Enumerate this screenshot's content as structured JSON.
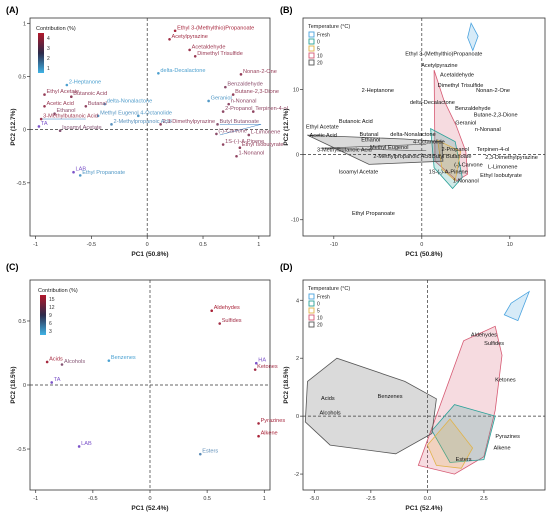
{
  "colors": {
    "fresh": "#4aa3df",
    "t0": "#2aa198",
    "t5": "#e0b34a",
    "t10": "#d65a73",
    "t20": "#555555",
    "contrib_low": "#3fb3e6",
    "contrib_high": "#b2182b",
    "purple": "#7b52c8"
  },
  "chart_data": [
    {
      "type": "scatter",
      "panel": "(A)",
      "xlabel": "PC1 (50.8%)",
      "ylabel": "PC2 (12.7%)",
      "xlim": [
        -1.05,
        1.1
      ],
      "ylim": [
        -1.0,
        1.05
      ],
      "xticks": [
        -1,
        -0.5,
        0,
        0.5,
        1
      ],
      "yticks": [
        -0.5,
        0,
        0.5,
        1
      ],
      "xtick_labels": [
        "-1",
        "-0.5",
        "0",
        "0.5",
        "1"
      ],
      "ytick_labels": [
        "-0.5",
        "0",
        "0.5",
        "1"
      ],
      "legend": {
        "title": "Contribution (%)",
        "ticks": [
          "4",
          "3",
          "2",
          "1"
        ],
        "min": 0.5,
        "max": 4.6
      },
      "points": [
        {
          "label": "Ethyl 3-(Methylthio)Propanoate",
          "x": 0.25,
          "y": 0.93,
          "c": 4.2
        },
        {
          "label": "Acetylpyrazine",
          "x": 0.2,
          "y": 0.85,
          "c": 4.0
        },
        {
          "label": "Acetaldehyde",
          "x": 0.38,
          "y": 0.75,
          "c": 3.8
        },
        {
          "label": "Dimethyl Trisulfide",
          "x": 0.43,
          "y": 0.69,
          "c": 3.7
        },
        {
          "label": "delta-Decalactone",
          "x": 0.1,
          "y": 0.53,
          "c": 1.0
        },
        {
          "label": "Nonan-2-One",
          "x": 0.84,
          "y": 0.52,
          "c": 3.6
        },
        {
          "label": "Benzaldehyde",
          "x": 0.7,
          "y": 0.4,
          "c": 3.2
        },
        {
          "label": "Butane-2,3-Dione",
          "x": 0.77,
          "y": 0.33,
          "c": 3.5
        },
        {
          "label": "Geraniol",
          "x": 0.55,
          "y": 0.27,
          "c": 1.2
        },
        {
          "label": "n-Nonanal",
          "x": 0.73,
          "y": 0.24,
          "c": 3.3
        },
        {
          "label": "2-Propanol",
          "x": 0.68,
          "y": 0.17,
          "c": 3.3
        },
        {
          "label": "Terpinen-4-ol",
          "x": 0.95,
          "y": 0.17,
          "c": 3.4
        },
        {
          "label": "2-Heptanone",
          "x": -0.72,
          "y": 0.42,
          "c": 1.0
        },
        {
          "label": "Ethyl Acetate",
          "x": -0.92,
          "y": 0.33,
          "c": 3.6
        },
        {
          "label": "Butanoic Acid",
          "x": -0.68,
          "y": 0.31,
          "c": 3.5
        },
        {
          "label": "delta-Nonalactone",
          "x": -0.38,
          "y": 0.24,
          "c": 1.1
        },
        {
          "label": "Acetic Acid",
          "x": -0.92,
          "y": 0.22,
          "c": 3.7
        },
        {
          "label": "Butanal",
          "x": -0.55,
          "y": 0.22,
          "c": 3.4
        },
        {
          "label": "Methyl Eugenol",
          "x": -0.44,
          "y": 0.13,
          "c": 1.3
        },
        {
          "label": "4-Octanolide",
          "x": -0.08,
          "y": 0.13,
          "c": 1.2
        },
        {
          "label": "Ethanol",
          "x": -0.83,
          "y": 0.15,
          "c": 3.2
        },
        {
          "label": "3-Methylbutanoic Acid",
          "x": -0.95,
          "y": 0.1,
          "c": 3.8
        },
        {
          "label": "2-Methylpropanoic Acid",
          "x": -0.32,
          "y": 0.05,
          "c": 1.4
        },
        {
          "label": "2,3-Dimethylpyrazine",
          "x": 0.12,
          "y": 0.05,
          "c": 3.4
        },
        {
          "label": "Butyl Butanoate",
          "x": 0.63,
          "y": 0.05,
          "c": 3.1
        },
        {
          "label": "TA",
          "x": -0.97,
          "y": 0.03,
          "c": 0.5,
          "purple": true
        },
        {
          "label": "Isoamyl Acetate",
          "x": -0.78,
          "y": -0.01,
          "c": 3.0
        },
        {
          "label": "(-)-Carvone",
          "x": 0.62,
          "y": -0.04,
          "c": 3.2
        },
        {
          "label": "L-Limonene",
          "x": 0.91,
          "y": -0.05,
          "c": 3.3
        },
        {
          "label": "1S-(-)-A-Pinene",
          "x": 0.68,
          "y": -0.14,
          "c": 3.4
        },
        {
          "label": "Ethyl Isobutyrate",
          "x": 0.83,
          "y": -0.17,
          "c": 3.5
        },
        {
          "label": "1-Nonanol",
          "x": 0.8,
          "y": -0.25,
          "c": 3.4
        },
        {
          "label": "LAB",
          "x": -0.66,
          "y": -0.4,
          "c": 0.5,
          "purple": true
        },
        {
          "label": "Ethyl Propanoate",
          "x": -0.6,
          "y": -0.43,
          "c": 1.2
        }
      ],
      "lines": [
        {
          "x1": 0.65,
          "y1": 0.05,
          "x2": 1.02,
          "y2": 0.05
        },
        {
          "x1": 0.65,
          "y1": -0.05,
          "x2": 1.02,
          "y2": 0.05
        },
        {
          "x1": -0.95,
          "y1": 0.1,
          "x2": -0.55,
          "y2": 0.1
        }
      ]
    },
    {
      "type": "scatter",
      "panel": "(B)",
      "xlabel": "PC1 (50.8%)",
      "ylabel": "PC2 (12.7%)",
      "xlim": [
        -13.5,
        14
      ],
      "ylim": [
        -12.5,
        21
      ],
      "xticks": [
        -10,
        0,
        10
      ],
      "yticks": [
        -10,
        0,
        10
      ],
      "xtick_labels": [
        "-10",
        "0",
        "10"
      ],
      "ytick_labels": [
        "-10",
        "0",
        "10"
      ],
      "legend": {
        "title": "Temperature (°C)",
        "entries": [
          "Fresh",
          "0",
          "5",
          "10",
          "20"
        ]
      },
      "labels": [
        {
          "text": "Ethyl 3-(Methylthio)Propanoate",
          "x": 2.5,
          "y": 15.2
        },
        {
          "text": "Acetylpyrazine",
          "x": 2.0,
          "y": 13.5
        },
        {
          "text": "Acetaldehyde",
          "x": 4.0,
          "y": 12.0
        },
        {
          "text": "Dimethyl Trisulfide",
          "x": 4.4,
          "y": 10.4
        },
        {
          "text": "2-Heptanone",
          "x": -5.0,
          "y": 9.6
        },
        {
          "text": "Nonan-2-One",
          "x": 8.1,
          "y": 9.6
        },
        {
          "text": "delta-Decalactone",
          "x": 1.2,
          "y": 7.8
        },
        {
          "text": "Benzaldehyde",
          "x": 5.8,
          "y": 6.9
        },
        {
          "text": "Butane-2,3-Dione",
          "x": 8.4,
          "y": 5.9
        },
        {
          "text": "Butanoic Acid",
          "x": -7.5,
          "y": 4.9
        },
        {
          "text": "Geraniol",
          "x": 5.0,
          "y": 4.6
        },
        {
          "text": "Ethyl Acetate",
          "x": -11.3,
          "y": 4.0
        },
        {
          "text": "Butanal",
          "x": -6.0,
          "y": 2.9
        },
        {
          "text": "n-Nonanal",
          "x": 7.5,
          "y": 3.6
        },
        {
          "text": "delta-Nonalactone",
          "x": -1.0,
          "y": 2.9
        },
        {
          "text": "Acetic Acid",
          "x": -11.2,
          "y": 2.7
        },
        {
          "text": "Ethanol",
          "x": -5.8,
          "y": 2.0
        },
        {
          "text": "4-Octanolide",
          "x": 0.8,
          "y": 1.7
        },
        {
          "text": "Methyl Eugenol",
          "x": -3.7,
          "y": 0.9
        },
        {
          "text": "2-Propanol",
          "x": 3.8,
          "y": 0.6
        },
        {
          "text": "Terpinen-4-ol",
          "x": 8.1,
          "y": 0.6
        },
        {
          "text": "3-Methylbutanoic Acid",
          "x": -8.8,
          "y": 0.5
        },
        {
          "text": "2-Methylpropanoic Acid",
          "x": -2.2,
          "y": -0.5
        },
        {
          "text": "Butyl Butanoate",
          "x": 3.4,
          "y": -0.5
        },
        {
          "text": "2,3-Dimethylpyrazine",
          "x": 10.2,
          "y": -0.7
        },
        {
          "text": "(-)-Carvone",
          "x": 5.3,
          "y": -1.8
        },
        {
          "text": "L-Limonene",
          "x": 9.2,
          "y": -2.1
        },
        {
          "text": "Isoamyl Acetate",
          "x": -7.2,
          "y": -2.9
        },
        {
          "text": "1S-(-)-A-Pinene",
          "x": 3.0,
          "y": -2.9
        },
        {
          "text": "Ethyl Isobutyrate",
          "x": 9.0,
          "y": -3.4
        },
        {
          "text": "1-Nonanol",
          "x": 5.0,
          "y": -4.3
        },
        {
          "text": "Ethyl Propanoate",
          "x": -5.5,
          "y": -9.3
        }
      ],
      "hulls": [
        {
          "group": "Fresh",
          "points": [
            [
              5.6,
              20.2
            ],
            [
              6.4,
              18.2
            ],
            [
              5.8,
              16.0
            ],
            [
              5.2,
              18.0
            ]
          ]
        },
        {
          "group": "10",
          "points": [
            [
              1.4,
              13.0
            ],
            [
              2.5,
              8.4
            ],
            [
              3.9,
              4.5
            ],
            [
              5.0,
              0.5
            ],
            [
              5.2,
              -3.0
            ],
            [
              4.0,
              -4.0
            ],
            [
              1.5,
              -1.0
            ]
          ]
        },
        {
          "group": "0",
          "points": [
            [
              1.0,
              4.0
            ],
            [
              3.8,
              2.0
            ],
            [
              4.6,
              -3.5
            ],
            [
              3.5,
              -5.2
            ],
            [
              1.4,
              -2.0
            ]
          ]
        },
        {
          "group": "5",
          "points": [
            [
              1.8,
              2.2
            ],
            [
              4.4,
              0.5
            ],
            [
              3.8,
              -4.0
            ],
            [
              2.3,
              -2.2
            ]
          ]
        },
        {
          "group": "20",
          "points": [
            [
              -13.0,
              3.0
            ],
            [
              -2.0,
              2.4
            ],
            [
              2.3,
              2.0
            ],
            [
              2.4,
              -1.0
            ],
            [
              -6.0,
              -1.5
            ]
          ]
        }
      ],
      "lines": [
        {
          "x1": -11.5,
          "y1": 1.0,
          "x2": 0.5,
          "y2": 0.6
        },
        {
          "x1": -11.5,
          "y1": 1.0,
          "x2": 0.5,
          "y2": 1.6
        }
      ]
    },
    {
      "type": "scatter",
      "panel": "(C)",
      "xlabel": "PC1 (52.4%)",
      "ylabel": "PC2 (18.5%)",
      "xlim": [
        -1.05,
        1.05
      ],
      "ylim": [
        -0.82,
        0.82
      ],
      "xticks": [
        -1,
        -0.5,
        0,
        0.5,
        1
      ],
      "yticks": [
        -0.5,
        0,
        0.5
      ],
      "xtick_labels": [
        "-1",
        "-0.5",
        "0",
        "0.5",
        "1"
      ],
      "ytick_labels": [
        "-0.5",
        "0",
        "0.5"
      ],
      "legend": {
        "title": "Contribution (%)",
        "ticks": [
          "15",
          "12",
          "9",
          "6",
          "3"
        ],
        "min": 2,
        "max": 16
      },
      "points": [
        {
          "label": "Aldehydes",
          "x": 0.54,
          "y": 0.58,
          "c": 15.0
        },
        {
          "label": "Sulfides",
          "x": 0.61,
          "y": 0.48,
          "c": 14.0
        },
        {
          "label": "Acids",
          "x": -0.9,
          "y": 0.18,
          "c": 14.5
        },
        {
          "label": "Alcohols",
          "x": -0.77,
          "y": 0.16,
          "c": 10.5
        },
        {
          "label": "Benzenes",
          "x": -0.36,
          "y": 0.19,
          "c": 3.5
        },
        {
          "label": "HA",
          "x": 0.93,
          "y": 0.17,
          "c": 2.0,
          "purple": true
        },
        {
          "label": "Ketones",
          "x": 0.92,
          "y": 0.12,
          "c": 14.0
        },
        {
          "label": "TA",
          "x": -0.86,
          "y": 0.02,
          "c": 2.0,
          "purple": true
        },
        {
          "label": "Pyrazines",
          "x": 0.95,
          "y": -0.3,
          "c": 14.5
        },
        {
          "label": "Alkene",
          "x": 0.95,
          "y": -0.4,
          "c": 15.0
        },
        {
          "label": "LAB",
          "x": -0.62,
          "y": -0.48,
          "c": 2.0,
          "purple": true
        },
        {
          "label": "Esters",
          "x": 0.44,
          "y": -0.54,
          "c": 5.5
        }
      ]
    },
    {
      "type": "scatter",
      "panel": "(D)",
      "xlabel": "PC1 (52.4%)",
      "ylabel": "PC2 (18.5%)",
      "xlim": [
        -5.5,
        5.2
      ],
      "ylim": [
        -2.55,
        4.7
      ],
      "xticks": [
        -5.0,
        -2.5,
        0.0,
        2.5
      ],
      "yticks": [
        -2,
        0,
        2,
        4
      ],
      "xtick_labels": [
        "-5.0",
        "-2.5",
        "0.0",
        "2.5"
      ],
      "ytick_labels": [
        "-2",
        "0",
        "2",
        "4"
      ],
      "legend": {
        "title": "Temperature (°C)",
        "entries": [
          "Fresh",
          "0",
          "5",
          "10",
          "20"
        ]
      },
      "labels": [
        {
          "text": "Aldehydes",
          "x": 2.5,
          "y": 2.75
        },
        {
          "text": "Sulfides",
          "x": 2.95,
          "y": 2.45
        },
        {
          "text": "Ketones",
          "x": 3.45,
          "y": 1.2
        },
        {
          "text": "Acids",
          "x": -4.4,
          "y": 0.55
        },
        {
          "text": "Benzenes",
          "x": -1.65,
          "y": 0.62
        },
        {
          "text": "Alcohols",
          "x": -4.3,
          "y": 0.05
        },
        {
          "text": "Pyrazines",
          "x": 3.55,
          "y": -0.75
        },
        {
          "text": "Alkene",
          "x": 3.3,
          "y": -1.15
        },
        {
          "text": "Esters",
          "x": 1.6,
          "y": -1.55
        }
      ],
      "hulls": [
        {
          "group": "Fresh",
          "points": [
            [
              3.7,
              3.9
            ],
            [
              4.5,
              4.3
            ],
            [
              4.0,
              3.3
            ],
            [
              3.4,
              3.5
            ]
          ]
        },
        {
          "group": "10",
          "points": [
            [
              -0.4,
              -1.7
            ],
            [
              1.6,
              2.6
            ],
            [
              3.0,
              3.1
            ],
            [
              3.3,
              2.1
            ],
            [
              3.0,
              0.2
            ],
            [
              2.5,
              -1.4
            ],
            [
              1.2,
              -2.0
            ]
          ]
        },
        {
          "group": "0",
          "points": [
            [
              0.2,
              -0.5
            ],
            [
              1.2,
              0.4
            ],
            [
              3.0,
              0.0
            ],
            [
              2.5,
              -1.5
            ],
            [
              1.0,
              -1.6
            ]
          ]
        },
        {
          "group": "5",
          "points": [
            [
              0.0,
              -1.0
            ],
            [
              1.0,
              -0.1
            ],
            [
              2.0,
              -1.1
            ],
            [
              1.5,
              -1.8
            ],
            [
              0.4,
              -1.7
            ]
          ]
        },
        {
          "group": "20",
          "points": [
            [
              -5.3,
              1.2
            ],
            [
              -4.0,
              2.0
            ],
            [
              -1.0,
              1.2
            ],
            [
              0.4,
              0.6
            ],
            [
              0.2,
              -0.6
            ],
            [
              -1.4,
              -1.3
            ],
            [
              -4.3,
              -1.0
            ],
            [
              -5.4,
              -0.2
            ]
          ]
        }
      ]
    }
  ]
}
